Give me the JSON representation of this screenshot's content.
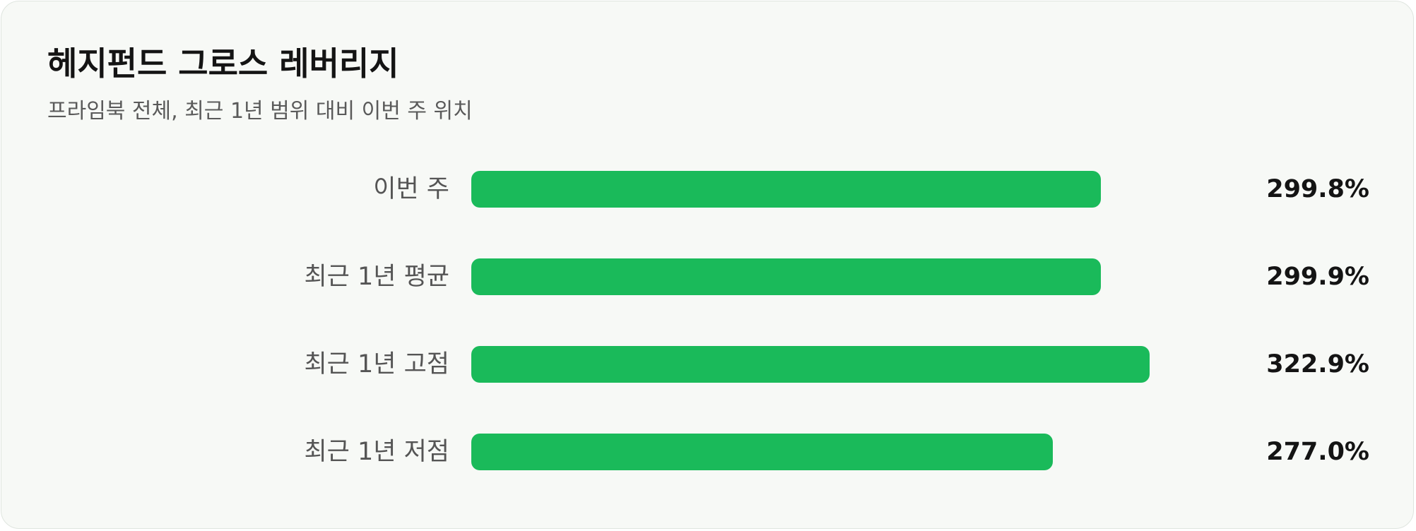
{
  "header": {
    "title": "헤지펀드 그로스 레버리지",
    "subtitle": "프라임북 전체, 최근 1년 범위 대비 이번 주 위치"
  },
  "colors": {
    "bar": "#1aba5a",
    "background": "#f7f9f6"
  },
  "chart_data": {
    "type": "bar",
    "orientation": "horizontal",
    "categories": [
      "이번 주",
      "최근 1년 평균",
      "최근 1년 고점",
      "최근 1년 저점"
    ],
    "values": [
      299.8,
      299.9,
      322.9,
      277.0
    ],
    "value_labels": [
      "299.8%",
      "299.9%",
      "322.9%",
      "277.0%"
    ],
    "unit": "%",
    "xlim": [
      0,
      340
    ],
    "grid": false,
    "legend": "none"
  }
}
